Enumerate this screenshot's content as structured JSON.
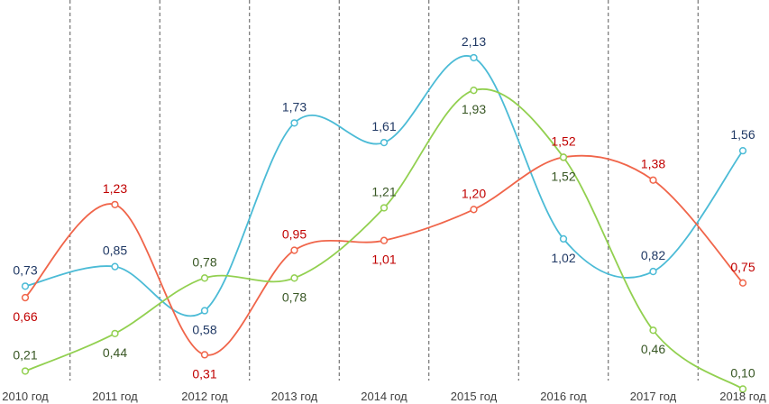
{
  "chart_data": {
    "type": "line",
    "title": "",
    "xlabel": "",
    "ylabel": "",
    "ylim": [
      0,
      2.3
    ],
    "grid": "vertical dashed separators between categories",
    "legend": "none",
    "smooth": true,
    "categories": [
      "2010 год",
      "2011 год",
      "2012 год",
      "2013 год",
      "2014 год",
      "2015 год",
      "2016 год",
      "2017 год",
      "2018 год"
    ],
    "series": [
      {
        "color": "#4BBBD6",
        "label_color": "#1F3864",
        "values": [
          0.73,
          0.85,
          0.58,
          1.73,
          1.61,
          2.13,
          1.02,
          0.82,
          1.56
        ],
        "labels": [
          "0,73",
          "0,85",
          "0,58",
          "1,73",
          "1,61",
          "2,13",
          "1,02",
          "0,82",
          "1,56"
        ],
        "label_pos": [
          "above",
          "above",
          "below",
          "above",
          "above",
          "above",
          "below",
          "above",
          "above"
        ]
      },
      {
        "color": "#F0654A",
        "label_color": "#C00000",
        "values": [
          0.66,
          1.23,
          0.31,
          0.95,
          1.01,
          1.2,
          1.52,
          1.38,
          0.75
        ],
        "labels": [
          "0,66",
          "1,23",
          "0,31",
          "0,95",
          "1,01",
          "1,20",
          "1,52",
          "1,38",
          "0,75"
        ],
        "label_pos": [
          "below",
          "above",
          "below",
          "above",
          "below",
          "above",
          "above",
          "above",
          "above"
        ]
      },
      {
        "color": "#92D050",
        "label_color": "#375623",
        "values": [
          0.21,
          0.44,
          0.78,
          0.78,
          1.21,
          1.93,
          1.52,
          0.46,
          0.1
        ],
        "labels": [
          "0,21",
          "0,44",
          "0,78",
          "0,78",
          "1,21",
          "1,93",
          "1,52",
          "0,46",
          "0,10"
        ],
        "label_pos": [
          "above",
          "below",
          "above",
          "below",
          "above",
          "below",
          "below",
          "below",
          "above"
        ]
      }
    ]
  }
}
